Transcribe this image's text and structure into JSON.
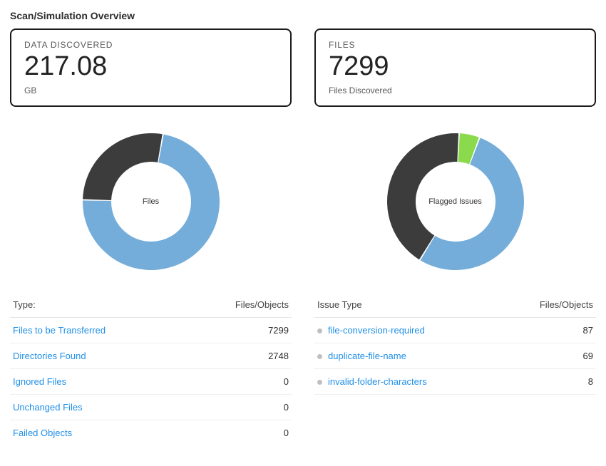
{
  "title": "Scan/Simulation Overview",
  "colors": {
    "link": "#1f8fe8",
    "text": "#2c2c2c",
    "muted": "#5a5a5a",
    "border": "#e5e5e5",
    "card_border": "#1a1a1a",
    "bullet": "#bfbfbf"
  },
  "left": {
    "stat": {
      "top_label": "DATA DISCOVERED",
      "value": "217.08",
      "bottom_label": "GB"
    },
    "chart": {
      "type": "donut",
      "center_label": "Files",
      "outer_r": 96,
      "inner_r": 56,
      "start_angle_deg": -80,
      "slices": [
        {
          "label": "Files to be Transferred",
          "value": 7299,
          "color": "#74add9"
        },
        {
          "label": "Directories Found",
          "value": 2748,
          "color": "#3c3c3c"
        }
      ]
    },
    "table": {
      "col_label": "Type:",
      "val_label": "Files/Objects",
      "rows": [
        {
          "label": "Files to be Transferred",
          "value": 7299
        },
        {
          "label": "Directories Found",
          "value": 2748
        },
        {
          "label": "Ignored Files",
          "value": 0
        },
        {
          "label": "Unchanged Files",
          "value": 0
        },
        {
          "label": "Failed Objects",
          "value": 0
        }
      ]
    }
  },
  "right": {
    "stat": {
      "top_label": "FILES",
      "value": "7299",
      "bottom_label": "Files Discovered"
    },
    "chart": {
      "type": "donut",
      "center_label": "Flagged Issues",
      "outer_r": 96,
      "inner_r": 56,
      "start_angle_deg": -87,
      "slices": [
        {
          "label": "invalid-folder-characters",
          "value": 8,
          "color": "#8bd94c"
        },
        {
          "label": "file-conversion-required",
          "value": 87,
          "color": "#74add9"
        },
        {
          "label": "duplicate-file-name",
          "value": 69,
          "color": "#3c3c3c"
        }
      ]
    },
    "table": {
      "col_label": "Issue Type",
      "val_label": "Files/Objects",
      "rows": [
        {
          "label": "file-conversion-required",
          "value": 87
        },
        {
          "label": "duplicate-file-name",
          "value": 69
        },
        {
          "label": "invalid-folder-characters",
          "value": 8
        }
      ]
    }
  }
}
